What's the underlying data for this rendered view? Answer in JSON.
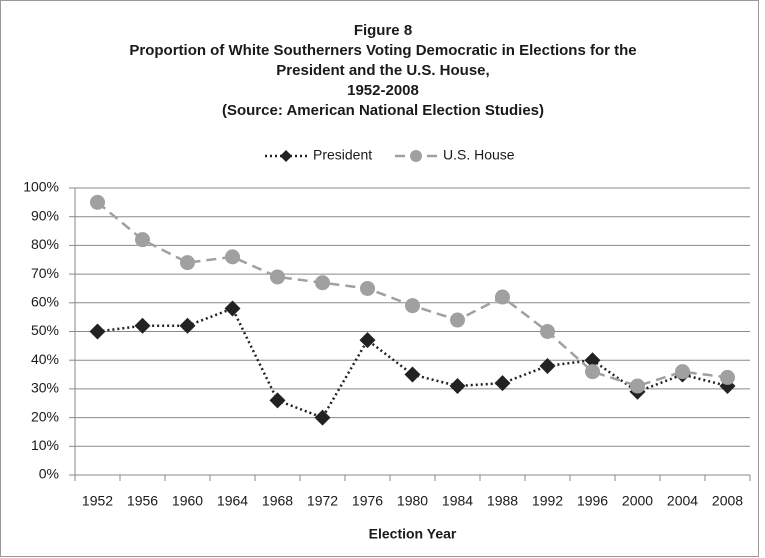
{
  "chart_data": {
    "type": "line",
    "title": [
      "Figure 8",
      "Proportion of White Southerners Voting Democratic in Elections for the",
      "President and the U.S. House,",
      "1952-2008",
      "(Source: American National Election Studies)"
    ],
    "x_label": "Election Year",
    "categories": [
      "1952",
      "1956",
      "1960",
      "1964",
      "1968",
      "1972",
      "1976",
      "1980",
      "1984",
      "1988",
      "1992",
      "1996",
      "2000",
      "2004",
      "2008"
    ],
    "series": [
      {
        "name": "President",
        "color": "#222222",
        "marker": "diamond",
        "line_style": "dotted",
        "values": [
          50,
          52,
          52,
          58,
          26,
          20,
          47,
          35,
          31,
          32,
          38,
          40,
          29,
          35,
          31
        ]
      },
      {
        "name": "U.S. House",
        "color": "#a0a0a0",
        "marker": "circle",
        "line_style": "dashed",
        "values": [
          95,
          82,
          74,
          76,
          69,
          67,
          65,
          59,
          54,
          62,
          50,
          36,
          31,
          36,
          34
        ]
      }
    ],
    "ylim": [
      0,
      100
    ],
    "yticks": [
      {
        "value": 0,
        "label": "0%"
      },
      {
        "value": 10,
        "label": "10%"
      },
      {
        "value": 20,
        "label": "20%"
      },
      {
        "value": 30,
        "label": "30%"
      },
      {
        "value": 40,
        "label": "40%"
      },
      {
        "value": 50,
        "label": "50%"
      },
      {
        "value": 60,
        "label": "60%"
      },
      {
        "value": 70,
        "label": "70%"
      },
      {
        "value": 80,
        "label": "80%"
      },
      {
        "value": 90,
        "label": "90%"
      },
      {
        "value": 100,
        "label": "100%"
      }
    ],
    "grid": true,
    "legend": "top"
  }
}
